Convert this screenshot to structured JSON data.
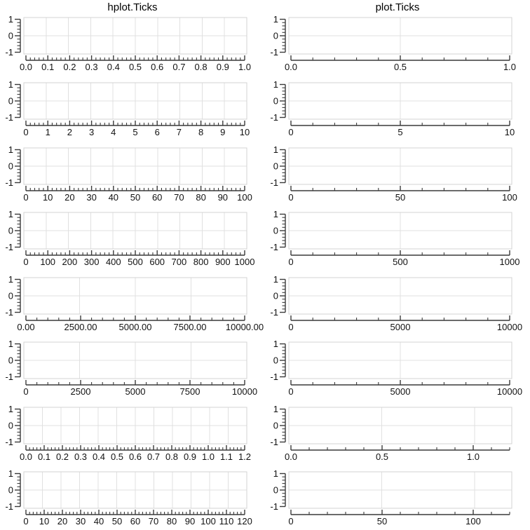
{
  "chart_data": {
    "type": "line",
    "title_left": "hplot.Ticks",
    "title_right": "plot.Ticks",
    "description": "Grid of 16 empty axes (8 rows x 2 columns) comparing x-axis tick placement of hplot.Ticks vs plot.Ticks. All plots share y-range -1..1 with ticks 1,0,-1 and contain no data series.",
    "yaxis": {
      "min": -1,
      "max": 1,
      "minor_step": 0.2,
      "ticks": [
        [
          "1",
          1
        ],
        [
          "0",
          0
        ],
        [
          "-1",
          -1
        ]
      ]
    },
    "columns": [
      {
        "title": "hplot.Ticks",
        "plots": [
          {
            "xmin": 0,
            "xmax": 1,
            "minor_step": 0.02,
            "ticks": [
              [
                "0.0",
                0
              ],
              [
                "0.1",
                0.1
              ],
              [
                "0.2",
                0.2
              ],
              [
                "0.3",
                0.3
              ],
              [
                "0.4",
                0.4
              ],
              [
                "0.5",
                0.5
              ],
              [
                "0.6",
                0.6
              ],
              [
                "0.7",
                0.7
              ],
              [
                "0.8",
                0.8
              ],
              [
                "0.9",
                0.9
              ],
              [
                "1.0",
                1
              ]
            ]
          },
          {
            "xmin": 0,
            "xmax": 10,
            "minor_step": 0.2,
            "ticks": [
              [
                "0",
                0
              ],
              [
                "1",
                1
              ],
              [
                "2",
                2
              ],
              [
                "3",
                3
              ],
              [
                "4",
                4
              ],
              [
                "5",
                5
              ],
              [
                "6",
                6
              ],
              [
                "7",
                7
              ],
              [
                "8",
                8
              ],
              [
                "9",
                9
              ],
              [
                "10",
                10
              ]
            ]
          },
          {
            "xmin": 0,
            "xmax": 100,
            "minor_step": 2,
            "ticks": [
              [
                "0",
                0
              ],
              [
                "10",
                10
              ],
              [
                "20",
                20
              ],
              [
                "30",
                30
              ],
              [
                "40",
                40
              ],
              [
                "50",
                50
              ],
              [
                "60",
                60
              ],
              [
                "70",
                70
              ],
              [
                "80",
                80
              ],
              [
                "90",
                90
              ],
              [
                "100",
                100
              ]
            ]
          },
          {
            "xmin": 0,
            "xmax": 1000,
            "minor_step": 20,
            "ticks": [
              [
                "0",
                0
              ],
              [
                "100",
                100
              ],
              [
                "200",
                200
              ],
              [
                "300",
                300
              ],
              [
                "400",
                400
              ],
              [
                "500",
                500
              ],
              [
                "600",
                600
              ],
              [
                "700",
                700
              ],
              [
                "800",
                800
              ],
              [
                "900",
                900
              ],
              [
                "1000",
                1000
              ]
            ]
          },
          {
            "xmin": 0,
            "xmax": 10000,
            "minor_step": 500,
            "ticks": [
              [
                "0.00",
                0
              ],
              [
                "2500.00",
                2500
              ],
              [
                "5000.00",
                5000
              ],
              [
                "7500.00",
                7500
              ],
              [
                "10000.00",
                10000
              ]
            ]
          },
          {
            "xmin": 0,
            "xmax": 10000,
            "minor_step": 500,
            "ticks": [
              [
                "0",
                0
              ],
              [
                "2500",
                2500
              ],
              [
                "5000",
                5000
              ],
              [
                "7500",
                7500
              ],
              [
                "10000",
                10000
              ]
            ]
          },
          {
            "xmin": 0,
            "xmax": 1.2,
            "minor_step": 0.02,
            "ticks": [
              [
                "0.0",
                0
              ],
              [
                "0.1",
                0.1
              ],
              [
                "0.2",
                0.2
              ],
              [
                "0.3",
                0.3
              ],
              [
                "0.4",
                0.4
              ],
              [
                "0.5",
                0.5
              ],
              [
                "0.6",
                0.6
              ],
              [
                "0.7",
                0.7
              ],
              [
                "0.8",
                0.8
              ],
              [
                "0.9",
                0.9
              ],
              [
                "1.0",
                1
              ],
              [
                "1.1",
                1.1
              ],
              [
                "1.2",
                1.2
              ]
            ]
          },
          {
            "xmin": 0,
            "xmax": 120,
            "minor_step": 2,
            "ticks": [
              [
                "0",
                0
              ],
              [
                "10",
                10
              ],
              [
                "20",
                20
              ],
              [
                "30",
                30
              ],
              [
                "40",
                40
              ],
              [
                "50",
                50
              ],
              [
                "60",
                60
              ],
              [
                "70",
                70
              ],
              [
                "80",
                80
              ],
              [
                "90",
                90
              ],
              [
                "100",
                100
              ],
              [
                "110",
                110
              ],
              [
                "120",
                120
              ]
            ]
          }
        ]
      },
      {
        "title": "plot.Ticks",
        "plots": [
          {
            "xmin": 0,
            "xmax": 1,
            "minor_step": 0.1,
            "ticks": [
              [
                "0.0",
                0
              ],
              [
                "0.5",
                0.5
              ],
              [
                "1.0",
                1
              ]
            ]
          },
          {
            "xmin": 0,
            "xmax": 10,
            "minor_step": 1,
            "ticks": [
              [
                "0",
                0
              ],
              [
                "5",
                5
              ],
              [
                "10",
                10
              ]
            ]
          },
          {
            "xmin": 0,
            "xmax": 100,
            "minor_step": 10,
            "ticks": [
              [
                "0",
                0
              ],
              [
                "50",
                50
              ],
              [
                "100",
                100
              ]
            ]
          },
          {
            "xmin": 0,
            "xmax": 1000,
            "minor_step": 100,
            "ticks": [
              [
                "0",
                0
              ],
              [
                "500",
                500
              ],
              [
                "1000",
                1000
              ]
            ]
          },
          {
            "xmin": 0,
            "xmax": 10000,
            "minor_step": 1000,
            "ticks": [
              [
                "0",
                0
              ],
              [
                "5000",
                5000
              ],
              [
                "10000",
                10000
              ]
            ]
          },
          {
            "xmin": 0,
            "xmax": 10000,
            "minor_step": 1000,
            "ticks": [
              [
                "0",
                0
              ],
              [
                "5000",
                5000
              ],
              [
                "10000",
                10000
              ]
            ]
          },
          {
            "xmin": 0,
            "xmax": 1.2,
            "minor_step": 0.1,
            "ticks": [
              [
                "0.0",
                0
              ],
              [
                "0.5",
                0.5
              ],
              [
                "1.0",
                1
              ]
            ]
          },
          {
            "xmin": 0,
            "xmax": 120,
            "minor_step": 10,
            "ticks": [
              [
                "0",
                0
              ],
              [
                "50",
                50
              ],
              [
                "100",
                100
              ]
            ]
          }
        ]
      }
    ],
    "colors": {
      "axis": "#3a3a3a",
      "tick_label": "#111111",
      "grid": "#e0e0e0",
      "plot_border": "#d3d3d3",
      "background": "#ffffff"
    }
  }
}
